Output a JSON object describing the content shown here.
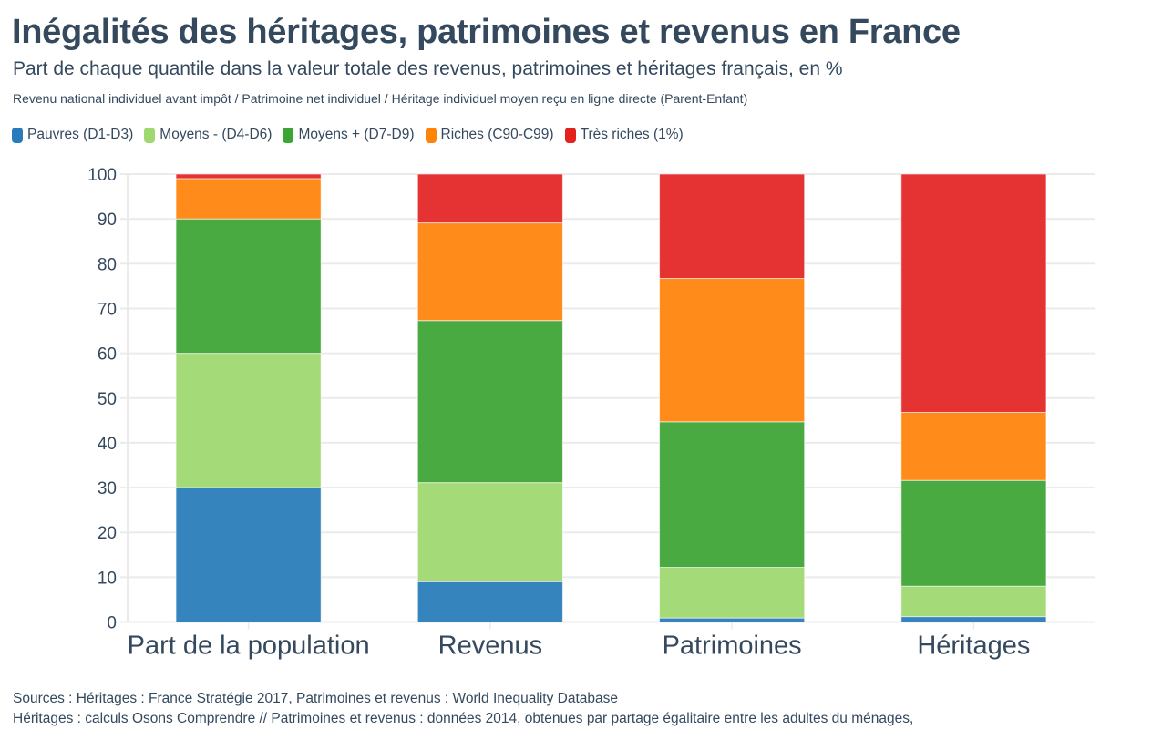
{
  "header": {
    "title": "Inégalités des héritages, patrimoines et revenus en France",
    "subtitle": "Part de chaque quantile dans la valeur totale des revenus, patrimoines et héritages français, en %",
    "note": "Revenu national individuel avant impôt / Patrimoine net individuel / Héritage individuel moyen reçu en ligne directe (Parent-Enfant)"
  },
  "legend": [
    {
      "label": "Pauvres (D1-D3)",
      "color": "#2b7bba"
    },
    {
      "label": "Moyens - (D4-D6)",
      "color": "#9fd86f"
    },
    {
      "label": "Moyens + (D7-D9)",
      "color": "#3ba532"
    },
    {
      "label": "Riches (C90-C99)",
      "color": "#ff8209"
    },
    {
      "label": "Très riches (1%)",
      "color": "#e3211d"
    }
  ],
  "chart_data": {
    "type": "bar",
    "stacked": true,
    "title": "Inégalités des héritages, patrimoines et revenus en France",
    "xlabel": "",
    "ylabel": "",
    "ylim": [
      0,
      100
    ],
    "yticks": [
      0,
      10,
      20,
      30,
      40,
      50,
      60,
      70,
      80,
      90,
      100
    ],
    "grid": true,
    "legend_position": "top-left",
    "categories": [
      "Part de la population",
      "Revenus",
      "Patrimoines",
      "Héritages"
    ],
    "series": [
      {
        "name": "Pauvres (D1-D3)",
        "color": "#3584bd",
        "values": [
          30,
          9.0,
          0.9,
          1.2
        ]
      },
      {
        "name": "Moyens - (D4-D6)",
        "color": "#a4da78",
        "values": [
          30,
          22.1,
          11.3,
          6.8
        ]
      },
      {
        "name": "Moyens + (D7-D9)",
        "color": "#4aaa42",
        "values": [
          30,
          36.2,
          32.5,
          23.6
        ]
      },
      {
        "name": "Riches (C90-C99)",
        "color": "#ff8b1a",
        "values": [
          9,
          21.8,
          32.0,
          15.2
        ]
      },
      {
        "name": "Très riches (1%)",
        "color": "#e53333",
        "values": [
          1,
          10.9,
          23.3,
          53.2
        ]
      }
    ]
  },
  "footer": {
    "sources_prefix": "Sources : ",
    "link1": "Héritages : France Stratégie 2017",
    "separator": ", ",
    "link2": "Patrimoines et revenus : World Inequality Database",
    "line2": "Héritages : calculs Osons Comprendre // Patrimoines et revenus : données 2014, obtenues par partage égalitaire entre les adultes du ménages,"
  }
}
